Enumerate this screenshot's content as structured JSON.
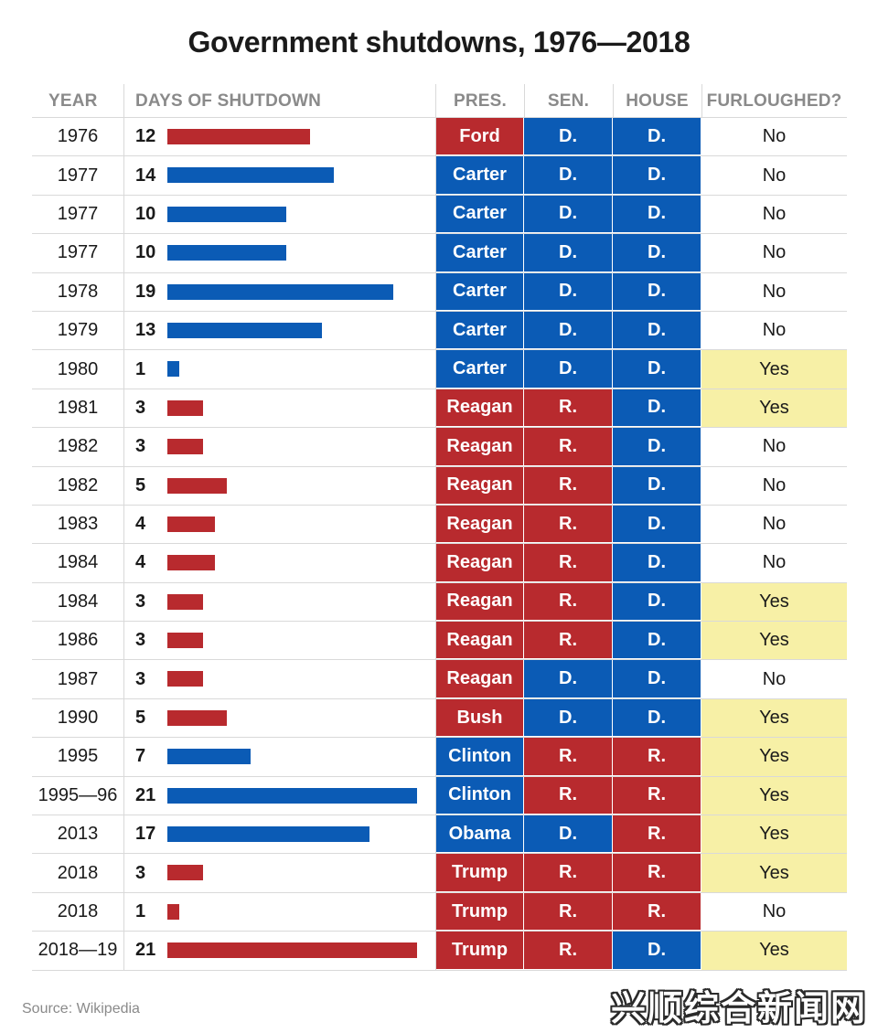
{
  "title": "Government shutdowns, 1976—2018",
  "headers": {
    "year": "YEAR",
    "days": "DAYS OF SHUTDOWN",
    "pres": "PRES.",
    "sen": "SEN.",
    "house": "HOUSE",
    "furloughed": "FURLOUGHED?"
  },
  "source": "Source: Wikipedia",
  "watermark": "兴顺综合新闻网",
  "colors": {
    "republican": "#b82a2e",
    "democrat": "#0b5bb5",
    "furloughed_yes": "#f7f0a6",
    "text": "#1a1a1a",
    "muted": "#8a8a8a"
  },
  "chart_data": {
    "type": "table",
    "xlim": [
      0,
      21
    ],
    "rows": [
      {
        "year": "1976",
        "days": 12,
        "bar_party": "R",
        "pres": "Ford",
        "pres_party": "R",
        "sen": "D.",
        "house": "D.",
        "furloughed": "No"
      },
      {
        "year": "1977",
        "days": 14,
        "bar_party": "D",
        "pres": "Carter",
        "pres_party": "D",
        "sen": "D.",
        "house": "D.",
        "furloughed": "No"
      },
      {
        "year": "1977",
        "days": 10,
        "bar_party": "D",
        "pres": "Carter",
        "pres_party": "D",
        "sen": "D.",
        "house": "D.",
        "furloughed": "No"
      },
      {
        "year": "1977",
        "days": 10,
        "bar_party": "D",
        "pres": "Carter",
        "pres_party": "D",
        "sen": "D.",
        "house": "D.",
        "furloughed": "No"
      },
      {
        "year": "1978",
        "days": 19,
        "bar_party": "D",
        "pres": "Carter",
        "pres_party": "D",
        "sen": "D.",
        "house": "D.",
        "furloughed": "No"
      },
      {
        "year": "1979",
        "days": 13,
        "bar_party": "D",
        "pres": "Carter",
        "pres_party": "D",
        "sen": "D.",
        "house": "D.",
        "furloughed": "No"
      },
      {
        "year": "1980",
        "days": 1,
        "bar_party": "D",
        "pres": "Carter",
        "pres_party": "D",
        "sen": "D.",
        "house": "D.",
        "furloughed": "Yes"
      },
      {
        "year": "1981",
        "days": 3,
        "bar_party": "R",
        "pres": "Reagan",
        "pres_party": "R",
        "sen": "R.",
        "house": "D.",
        "furloughed": "Yes"
      },
      {
        "year": "1982",
        "days": 3,
        "bar_party": "R",
        "pres": "Reagan",
        "pres_party": "R",
        "sen": "R.",
        "house": "D.",
        "furloughed": "No"
      },
      {
        "year": "1982",
        "days": 5,
        "bar_party": "R",
        "pres": "Reagan",
        "pres_party": "R",
        "sen": "R.",
        "house": "D.",
        "furloughed": "No"
      },
      {
        "year": "1983",
        "days": 4,
        "bar_party": "R",
        "pres": "Reagan",
        "pres_party": "R",
        "sen": "R.",
        "house": "D.",
        "furloughed": "No"
      },
      {
        "year": "1984",
        "days": 4,
        "bar_party": "R",
        "pres": "Reagan",
        "pres_party": "R",
        "sen": "R.",
        "house": "D.",
        "furloughed": "No"
      },
      {
        "year": "1984",
        "days": 3,
        "bar_party": "R",
        "pres": "Reagan",
        "pres_party": "R",
        "sen": "R.",
        "house": "D.",
        "furloughed": "Yes"
      },
      {
        "year": "1986",
        "days": 3,
        "bar_party": "R",
        "pres": "Reagan",
        "pres_party": "R",
        "sen": "R.",
        "house": "D.",
        "furloughed": "Yes"
      },
      {
        "year": "1987",
        "days": 3,
        "bar_party": "R",
        "pres": "Reagan",
        "pres_party": "R",
        "sen": "D.",
        "house": "D.",
        "furloughed": "No"
      },
      {
        "year": "1990",
        "days": 5,
        "bar_party": "R",
        "pres": "Bush",
        "pres_party": "R",
        "sen": "D.",
        "house": "D.",
        "furloughed": "Yes"
      },
      {
        "year": "1995",
        "days": 7,
        "bar_party": "D",
        "pres": "Clinton",
        "pres_party": "D",
        "sen": "R.",
        "house": "R.",
        "furloughed": "Yes"
      },
      {
        "year": "1995—96",
        "days": 21,
        "bar_party": "D",
        "pres": "Clinton",
        "pres_party": "D",
        "sen": "R.",
        "house": "R.",
        "furloughed": "Yes"
      },
      {
        "year": "2013",
        "days": 17,
        "bar_party": "D",
        "pres": "Obama",
        "pres_party": "D",
        "sen": "D.",
        "house": "R.",
        "furloughed": "Yes"
      },
      {
        "year": "2018",
        "days": 3,
        "bar_party": "R",
        "pres": "Trump",
        "pres_party": "R",
        "sen": "R.",
        "house": "R.",
        "furloughed": "Yes"
      },
      {
        "year": "2018",
        "days": 1,
        "bar_party": "R",
        "pres": "Trump",
        "pres_party": "R",
        "sen": "R.",
        "house": "R.",
        "furloughed": "No"
      },
      {
        "year": "2018—19",
        "days": 21,
        "bar_party": "R",
        "pres": "Trump",
        "pres_party": "R",
        "sen": "R.",
        "house": "D.",
        "furloughed": "Yes"
      }
    ]
  }
}
